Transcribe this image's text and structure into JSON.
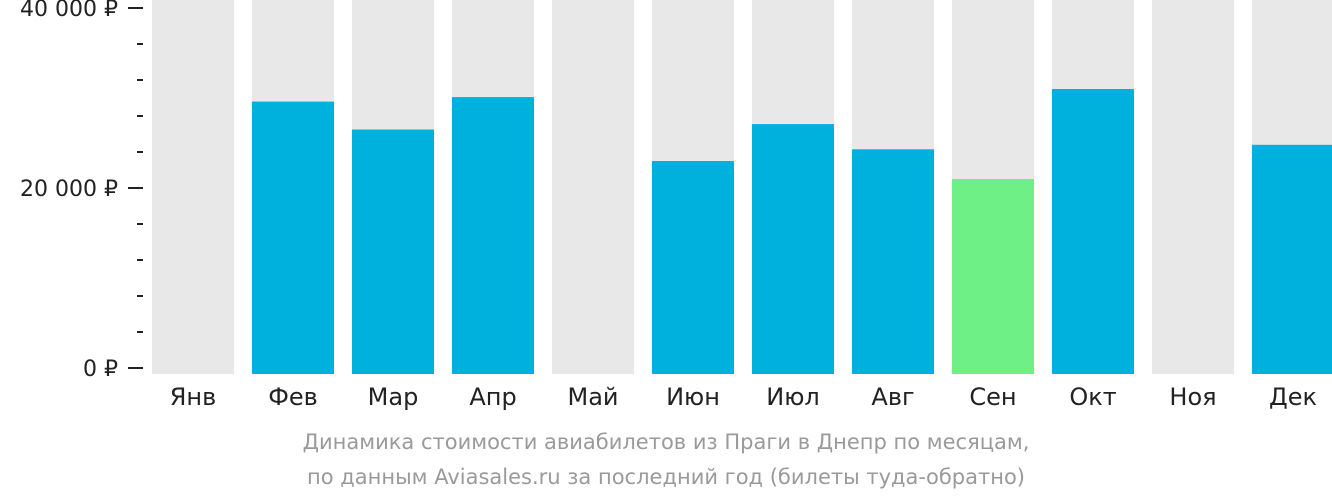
{
  "chart_data": {
    "type": "bar",
    "categories": [
      "Янв",
      "Фев",
      "Мар",
      "Апр",
      "Май",
      "Июн",
      "Июл",
      "Авг",
      "Сен",
      "Окт",
      "Ноя",
      "Дек"
    ],
    "values": [
      null,
      29600,
      26500,
      30100,
      null,
      23000,
      27100,
      24300,
      21000,
      31000,
      null,
      24800
    ],
    "highlight_category": "Сен",
    "ylim": [
      0,
      40000
    ],
    "yticks": [
      {
        "value": 0,
        "label": "0 ₽"
      },
      {
        "value": 20000,
        "label": "20 000 ₽"
      },
      {
        "value": 40000,
        "label": "40 000 ₽"
      }
    ],
    "minor_tick_step": 4000,
    "grid": false,
    "colors": {
      "bar": "#00b0dd",
      "highlight": "#6ef086",
      "background_column": "#e8e8e8",
      "axis_text": "#222222",
      "caption_text": "#9a9a9a"
    },
    "caption_line1": "Динамика стоимости авиабилетов из Праги в Днепр по месяцам,",
    "caption_line2": "по данным Aviasales.ru за последний год (билеты туда-обратно)"
  }
}
